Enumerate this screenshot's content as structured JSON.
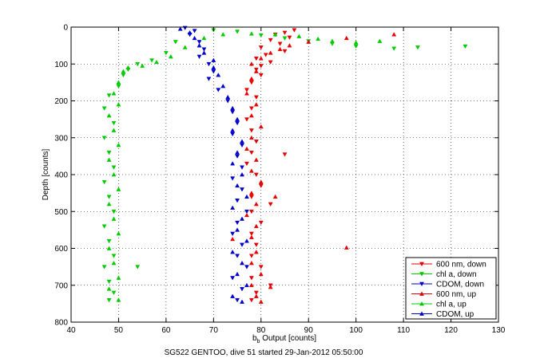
{
  "chart_data": {
    "type": "scatter",
    "xlabel": "b_b Output [counts]",
    "xlabel_main": "b",
    "xlabel_sub": "b",
    "xlabel_rest": " Output [counts]",
    "ylabel": "Depth [counts]",
    "caption": "SG522 GENTOO, dive 51 started 29-Jan-2012 05:50:00",
    "xlim": [
      40,
      130
    ],
    "ylim": [
      0,
      800
    ],
    "y_reversed": true,
    "grid": true,
    "grid_style": "dotted",
    "legend_position": "bottom-right",
    "x_ticks": [
      "40",
      "50",
      "60",
      "70",
      "80",
      "90",
      "100",
      "110",
      "120",
      "130"
    ],
    "y_ticks": [
      "0",
      "100",
      "200",
      "300",
      "400",
      "500",
      "600",
      "700",
      "800"
    ],
    "series": [
      {
        "name": "600 nm, down",
        "color": "#e60000",
        "marker": "triangle-down",
        "points": [
          [
            87,
            8
          ],
          [
            85,
            15
          ],
          [
            83,
            20
          ],
          [
            86,
            28
          ],
          [
            82,
            35
          ],
          [
            84,
            45
          ],
          [
            80,
            55
          ],
          [
            85,
            65
          ],
          [
            81,
            75
          ],
          [
            79,
            85
          ],
          [
            82,
            95
          ],
          [
            80,
            105
          ],
          [
            79,
            115
          ],
          [
            80,
            130
          ],
          [
            78,
            150
          ],
          [
            77,
            170
          ],
          [
            79,
            190
          ],
          [
            78,
            220
          ],
          [
            77,
            250
          ],
          [
            78,
            280
          ],
          [
            79,
            310
          ],
          [
            78,
            340
          ],
          [
            85,
            345
          ],
          [
            77,
            370
          ],
          [
            79,
            400
          ],
          [
            80,
            430
          ],
          [
            78,
            460
          ],
          [
            82,
            480
          ],
          [
            78,
            500
          ],
          [
            80,
            530
          ],
          [
            78,
            560
          ],
          [
            79,
            590
          ],
          [
            78,
            620
          ],
          [
            80,
            650
          ],
          [
            78,
            680
          ],
          [
            82,
            700
          ],
          [
            79,
            720
          ],
          [
            78,
            740
          ]
        ]
      },
      {
        "name": "chl a, down",
        "color": "#00cc00",
        "marker": "triangle-down",
        "points": [
          [
            123,
            52
          ],
          [
            113,
            55
          ],
          [
            108,
            58
          ],
          [
            100,
            52
          ],
          [
            95,
            45
          ],
          [
            90,
            38
          ],
          [
            85,
            30
          ],
          [
            80,
            22
          ],
          [
            75,
            12
          ],
          [
            70,
            8
          ],
          [
            65,
            20
          ],
          [
            62,
            40
          ],
          [
            60,
            70
          ],
          [
            57,
            90
          ],
          [
            54,
            100
          ],
          [
            52,
            115
          ],
          [
            51,
            130
          ],
          [
            50,
            160
          ],
          [
            48,
            185
          ],
          [
            47,
            220
          ],
          [
            49,
            260
          ],
          [
            47,
            300
          ],
          [
            48,
            340
          ],
          [
            49,
            380
          ],
          [
            47,
            420
          ],
          [
            48,
            460
          ],
          [
            49,
            500
          ],
          [
            47,
            540
          ],
          [
            48,
            580
          ],
          [
            49,
            620
          ],
          [
            47,
            650
          ],
          [
            54,
            650
          ],
          [
            48,
            690
          ],
          [
            49,
            720
          ],
          [
            48,
            740
          ]
        ]
      },
      {
        "name": "CDOM, down",
        "color": "#0000cc",
        "marker": "triangle-down",
        "points": [
          [
            64,
            2
          ],
          [
            66,
            10
          ],
          [
            65,
            20
          ],
          [
            67,
            40
          ],
          [
            68,
            60
          ],
          [
            67,
            80
          ],
          [
            69,
            100
          ],
          [
            70,
            120
          ],
          [
            69,
            140
          ],
          [
            71,
            170
          ],
          [
            73,
            200
          ],
          [
            74,
            230
          ],
          [
            75,
            260
          ],
          [
            74,
            290
          ],
          [
            76,
            320
          ],
          [
            75,
            350
          ],
          [
            76,
            380
          ],
          [
            74,
            410
          ],
          [
            76,
            440
          ],
          [
            75,
            470
          ],
          [
            77,
            500
          ],
          [
            75,
            530
          ],
          [
            74,
            560
          ],
          [
            76,
            590
          ],
          [
            75,
            620
          ],
          [
            77,
            650
          ],
          [
            74,
            680
          ],
          [
            76,
            710
          ],
          [
            75,
            740
          ]
        ]
      },
      {
        "name": "600 nm, up",
        "color": "#e60000",
        "marker": "triangle-up",
        "points": [
          [
            108,
            20
          ],
          [
            98,
            30
          ],
          [
            90,
            40
          ],
          [
            86,
            50
          ],
          [
            84,
            60
          ],
          [
            82,
            70
          ],
          [
            80,
            85
          ],
          [
            78,
            100
          ],
          [
            79,
            120
          ],
          [
            78,
            140
          ],
          [
            77,
            180
          ],
          [
            79,
            210
          ],
          [
            78,
            240
          ],
          [
            80,
            270
          ],
          [
            78,
            300
          ],
          [
            77,
            330
          ],
          [
            79,
            360
          ],
          [
            78,
            390
          ],
          [
            80,
            420
          ],
          [
            78,
            450
          ],
          [
            83,
            460
          ],
          [
            79,
            480
          ],
          [
            77,
            510
          ],
          [
            79,
            540
          ],
          [
            78,
            570
          ],
          [
            74,
            575
          ],
          [
            98,
            598
          ],
          [
            79,
            610
          ],
          [
            78,
            640
          ],
          [
            80,
            670
          ],
          [
            78,
            700
          ],
          [
            82,
            705
          ],
          [
            79,
            730
          ],
          [
            80,
            745
          ]
        ]
      },
      {
        "name": "chl a, up",
        "color": "#00cc00",
        "marker": "triangle-up",
        "points": [
          [
            105,
            38
          ],
          [
            100,
            42
          ],
          [
            95,
            38
          ],
          [
            92,
            32
          ],
          [
            88,
            25
          ],
          [
            83,
            20
          ],
          [
            78,
            18
          ],
          [
            72,
            20
          ],
          [
            68,
            30
          ],
          [
            64,
            55
          ],
          [
            61,
            80
          ],
          [
            58,
            95
          ],
          [
            55,
            105
          ],
          [
            52,
            110
          ],
          [
            51,
            120
          ],
          [
            50,
            150
          ],
          [
            49,
            180
          ],
          [
            50,
            210
          ],
          [
            48,
            240
          ],
          [
            49,
            280
          ],
          [
            50,
            320
          ],
          [
            48,
            360
          ],
          [
            49,
            400
          ],
          [
            50,
            440
          ],
          [
            48,
            480
          ],
          [
            49,
            520
          ],
          [
            50,
            560
          ],
          [
            48,
            600
          ],
          [
            49,
            640
          ],
          [
            50,
            680
          ],
          [
            48,
            710
          ],
          [
            50,
            740
          ]
        ]
      },
      {
        "name": "CDOM, up",
        "color": "#0000cc",
        "marker": "triangle-up",
        "points": [
          [
            63,
            5
          ],
          [
            65,
            15
          ],
          [
            66,
            30
          ],
          [
            67,
            50
          ],
          [
            68,
            70
          ],
          [
            70,
            90
          ],
          [
            70,
            110
          ],
          [
            71,
            130
          ],
          [
            72,
            160
          ],
          [
            73,
            190
          ],
          [
            74,
            220
          ],
          [
            75,
            250
          ],
          [
            74,
            280
          ],
          [
            76,
            310
          ],
          [
            75,
            340
          ],
          [
            74,
            370
          ],
          [
            76,
            400
          ],
          [
            75,
            430
          ],
          [
            77,
            460
          ],
          [
            74,
            490
          ],
          [
            76,
            520
          ],
          [
            75,
            550
          ],
          [
            77,
            580
          ],
          [
            74,
            610
          ],
          [
            76,
            640
          ],
          [
            75,
            670
          ],
          [
            77,
            700
          ],
          [
            74,
            730
          ],
          [
            76,
            745
          ]
        ]
      }
    ]
  }
}
